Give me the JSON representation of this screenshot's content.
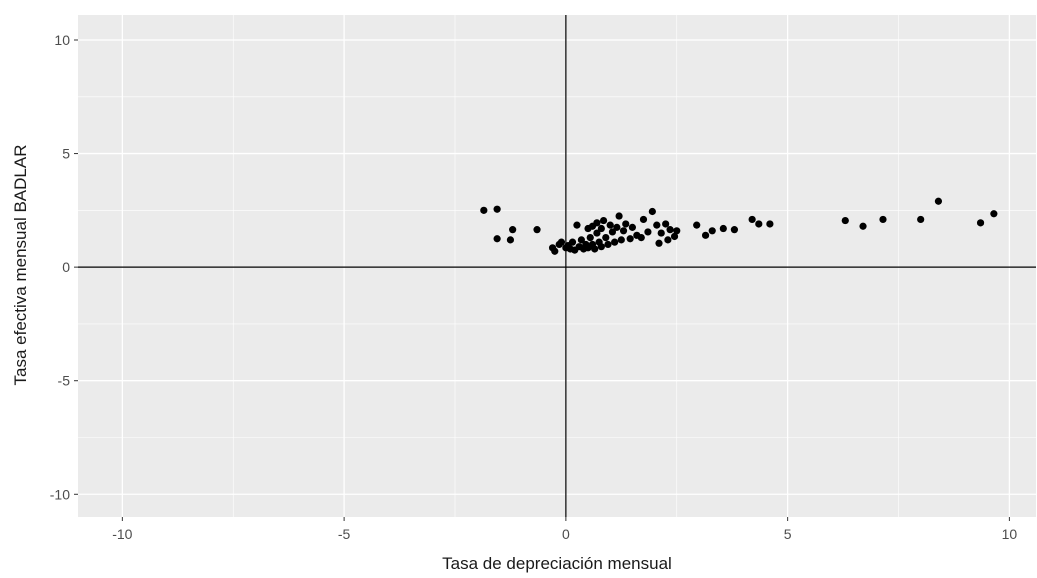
{
  "chart_data": {
    "type": "scatter",
    "title": "",
    "xlabel": "Tasa de depreciación mensual",
    "ylabel": "Tasa efectiva mensual BADLAR",
    "xlim": [
      -11,
      10.6
    ],
    "ylim": [
      -11,
      11.1
    ],
    "x_ticks": [
      -10,
      -5,
      0,
      5,
      10
    ],
    "y_ticks": [
      -10,
      -5,
      0,
      5,
      10
    ],
    "x_tick_labels": [
      "-10",
      "-5",
      "0",
      "5",
      "10"
    ],
    "y_tick_labels": [
      "-10",
      "-5",
      "0",
      "5",
      "10"
    ],
    "grid": true,
    "reference_lines": {
      "x": 0,
      "y": 0
    },
    "colors": {
      "panel": "#ebebeb",
      "grid": "#ffffff",
      "point": "#000000",
      "axis_line": "#000000"
    },
    "points": [
      {
        "x": -1.85,
        "y": 2.5
      },
      {
        "x": -1.55,
        "y": 2.55
      },
      {
        "x": -1.55,
        "y": 1.25
      },
      {
        "x": -1.25,
        "y": 1.2
      },
      {
        "x": -1.2,
        "y": 1.65
      },
      {
        "x": -0.65,
        "y": 1.65
      },
      {
        "x": -0.3,
        "y": 0.85
      },
      {
        "x": -0.25,
        "y": 0.7
      },
      {
        "x": -0.15,
        "y": 1.0
      },
      {
        "x": -0.1,
        "y": 1.1
      },
      {
        "x": 0.0,
        "y": 0.85
      },
      {
        "x": 0.05,
        "y": 0.95
      },
      {
        "x": 0.1,
        "y": 0.8
      },
      {
        "x": 0.15,
        "y": 1.1
      },
      {
        "x": 0.2,
        "y": 0.75
      },
      {
        "x": 0.25,
        "y": 1.85
      },
      {
        "x": 0.3,
        "y": 0.9
      },
      {
        "x": 0.35,
        "y": 1.2
      },
      {
        "x": 0.4,
        "y": 0.8
      },
      {
        "x": 0.45,
        "y": 1.0
      },
      {
        "x": 0.5,
        "y": 1.7
      },
      {
        "x": 0.5,
        "y": 0.85
      },
      {
        "x": 0.55,
        "y": 1.3
      },
      {
        "x": 0.6,
        "y": 1.8
      },
      {
        "x": 0.6,
        "y": 1.0
      },
      {
        "x": 0.65,
        "y": 0.8
      },
      {
        "x": 0.7,
        "y": 1.5
      },
      {
        "x": 0.7,
        "y": 1.95
      },
      {
        "x": 0.75,
        "y": 1.1
      },
      {
        "x": 0.8,
        "y": 0.9
      },
      {
        "x": 0.8,
        "y": 1.7
      },
      {
        "x": 0.85,
        "y": 2.05
      },
      {
        "x": 0.9,
        "y": 1.3
      },
      {
        "x": 0.95,
        "y": 1.0
      },
      {
        "x": 1.0,
        "y": 1.85
      },
      {
        "x": 1.05,
        "y": 1.55
      },
      {
        "x": 1.1,
        "y": 1.1
      },
      {
        "x": 1.15,
        "y": 1.75
      },
      {
        "x": 1.2,
        "y": 2.25
      },
      {
        "x": 1.25,
        "y": 1.2
      },
      {
        "x": 1.3,
        "y": 1.6
      },
      {
        "x": 1.35,
        "y": 1.9
      },
      {
        "x": 1.45,
        "y": 1.25
      },
      {
        "x": 1.5,
        "y": 1.75
      },
      {
        "x": 1.6,
        "y": 1.4
      },
      {
        "x": 1.7,
        "y": 1.3
      },
      {
        "x": 1.75,
        "y": 2.1
      },
      {
        "x": 1.85,
        "y": 1.55
      },
      {
        "x": 1.95,
        "y": 2.45
      },
      {
        "x": 2.05,
        "y": 1.85
      },
      {
        "x": 2.1,
        "y": 1.05
      },
      {
        "x": 2.15,
        "y": 1.5
      },
      {
        "x": 2.25,
        "y": 1.9
      },
      {
        "x": 2.3,
        "y": 1.2
      },
      {
        "x": 2.35,
        "y": 1.65
      },
      {
        "x": 2.45,
        "y": 1.35
      },
      {
        "x": 2.5,
        "y": 1.6
      },
      {
        "x": 2.95,
        "y": 1.85
      },
      {
        "x": 3.15,
        "y": 1.4
      },
      {
        "x": 3.3,
        "y": 1.6
      },
      {
        "x": 3.55,
        "y": 1.7
      },
      {
        "x": 3.8,
        "y": 1.65
      },
      {
        "x": 4.2,
        "y": 2.1
      },
      {
        "x": 4.35,
        "y": 1.9
      },
      {
        "x": 4.6,
        "y": 1.9
      },
      {
        "x": 6.3,
        "y": 2.05
      },
      {
        "x": 6.7,
        "y": 1.8
      },
      {
        "x": 7.15,
        "y": 2.1
      },
      {
        "x": 8.0,
        "y": 2.1
      },
      {
        "x": 8.4,
        "y": 2.9
      },
      {
        "x": 9.35,
        "y": 1.95
      },
      {
        "x": 9.65,
        "y": 2.35
      }
    ]
  }
}
